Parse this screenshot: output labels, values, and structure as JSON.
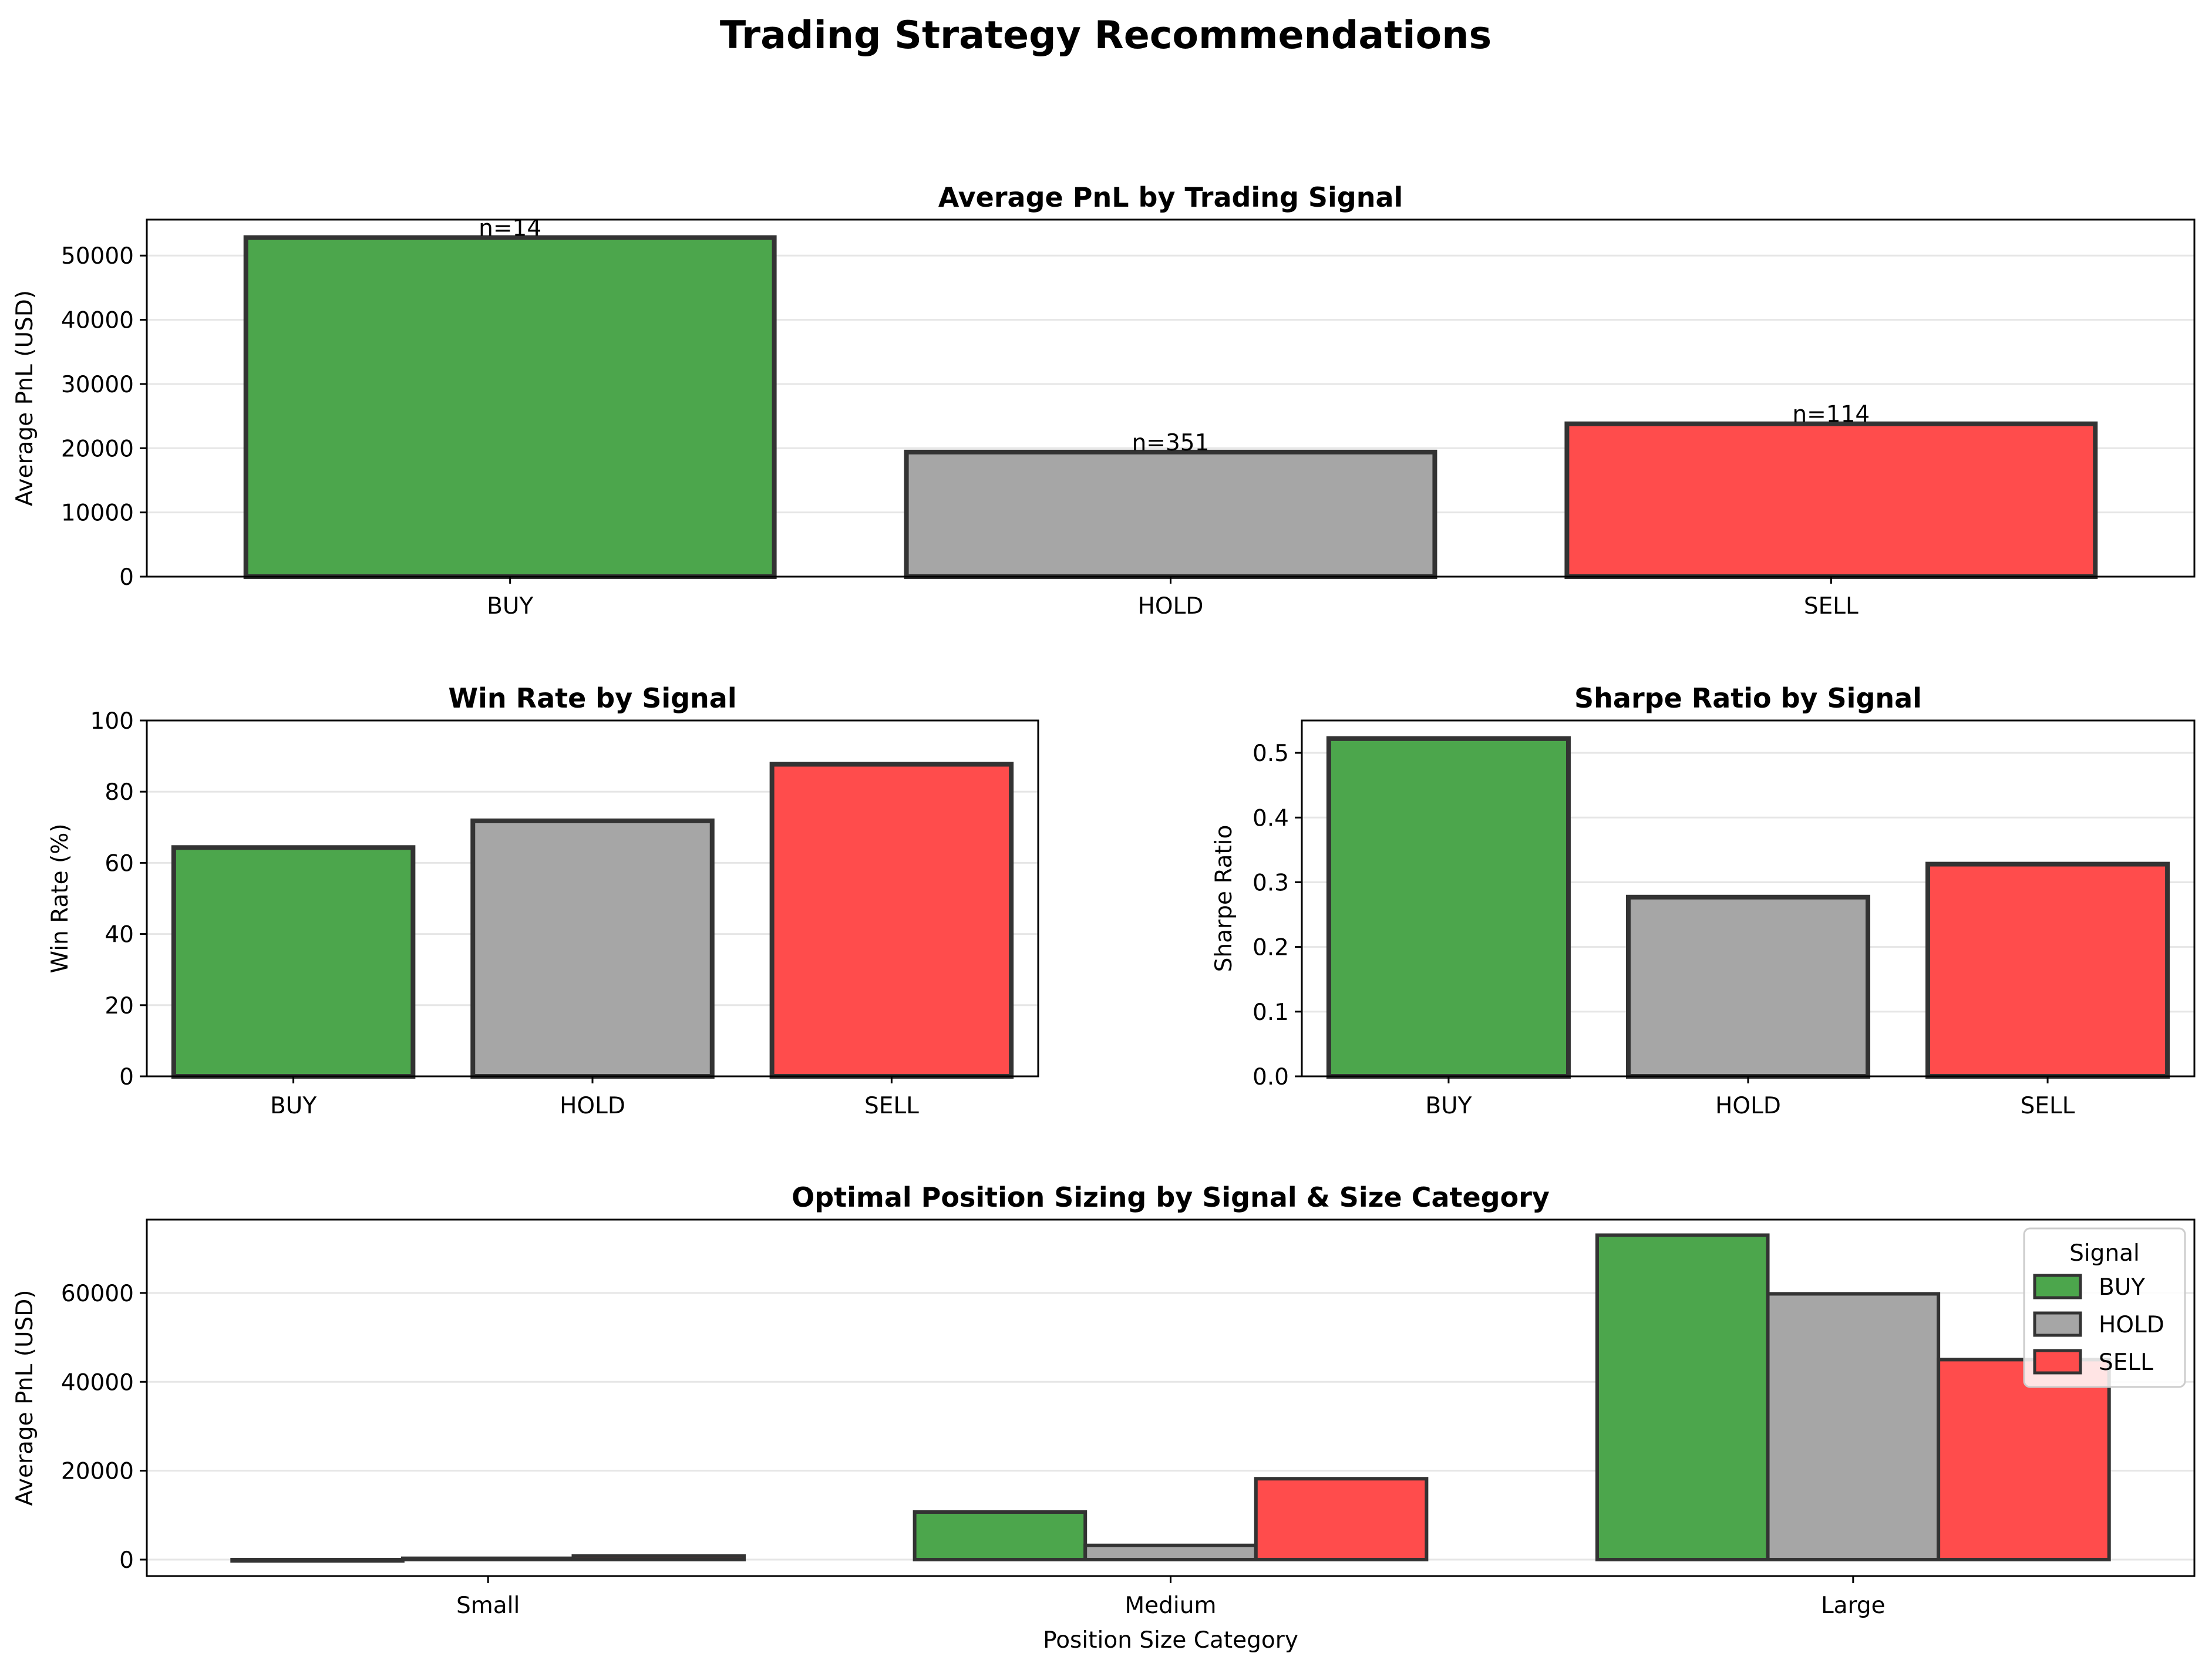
{
  "title": "Trading Strategy Recommendations",
  "colors": {
    "BUY": "#4ca64c",
    "HOLD": "#a6a6a6",
    "SELL": "#ff4c4c",
    "edge": "#333333",
    "grid": "#e6e6e6"
  },
  "chart_data": [
    {
      "id": "avg_pnl",
      "type": "bar",
      "title": "Average PnL by Trading Signal",
      "xlabel": "",
      "ylabel": "Average PnL (USD)",
      "categories": [
        "BUY",
        "HOLD",
        "SELL"
      ],
      "values": [
        52800,
        19400,
        23800
      ],
      "bar_labels": [
        "n=14",
        "n=351",
        "n=114"
      ],
      "ylim": [
        0,
        55600
      ],
      "yticks": [
        0,
        10000,
        20000,
        30000,
        40000,
        50000
      ],
      "grid": true
    },
    {
      "id": "win_rate",
      "type": "bar",
      "title": "Win Rate by Signal",
      "xlabel": "",
      "ylabel": "Win Rate (%)",
      "categories": [
        "BUY",
        "HOLD",
        "SELL"
      ],
      "values": [
        64.3,
        71.8,
        87.7
      ],
      "ylim": [
        0,
        100
      ],
      "yticks": [
        0,
        20,
        40,
        60,
        80,
        100
      ],
      "grid": true
    },
    {
      "id": "sharpe",
      "type": "bar",
      "title": "Sharpe Ratio by Signal",
      "xlabel": "",
      "ylabel": "Sharpe Ratio",
      "categories": [
        "BUY",
        "HOLD",
        "SELL"
      ],
      "values": [
        0.522,
        0.277,
        0.328
      ],
      "ylim": [
        0,
        0.55
      ],
      "yticks": [
        0.0,
        0.1,
        0.2,
        0.3,
        0.4,
        0.5
      ],
      "ytick_labels": [
        "0.0",
        "0.1",
        "0.2",
        "0.3",
        "0.4",
        "0.5"
      ],
      "grid": true
    },
    {
      "id": "sizing",
      "type": "bar",
      "title": "Optimal Position Sizing by Signal & Size Category",
      "xlabel": "Position Size Category",
      "ylabel": "Average PnL (USD)",
      "categories": [
        "Small",
        "Medium",
        "Large"
      ],
      "series": [
        {
          "name": "BUY",
          "values": [
            -300,
            10700,
            73000
          ]
        },
        {
          "name": "HOLD",
          "values": [
            300,
            3200,
            59800
          ]
        },
        {
          "name": "SELL",
          "values": [
            800,
            18200,
            45000
          ]
        }
      ],
      "legend_title": "Signal",
      "legend_position": "top-right",
      "ylim": [
        -3700,
        76500
      ],
      "yticks": [
        0,
        20000,
        40000,
        60000
      ],
      "grid": true
    }
  ]
}
